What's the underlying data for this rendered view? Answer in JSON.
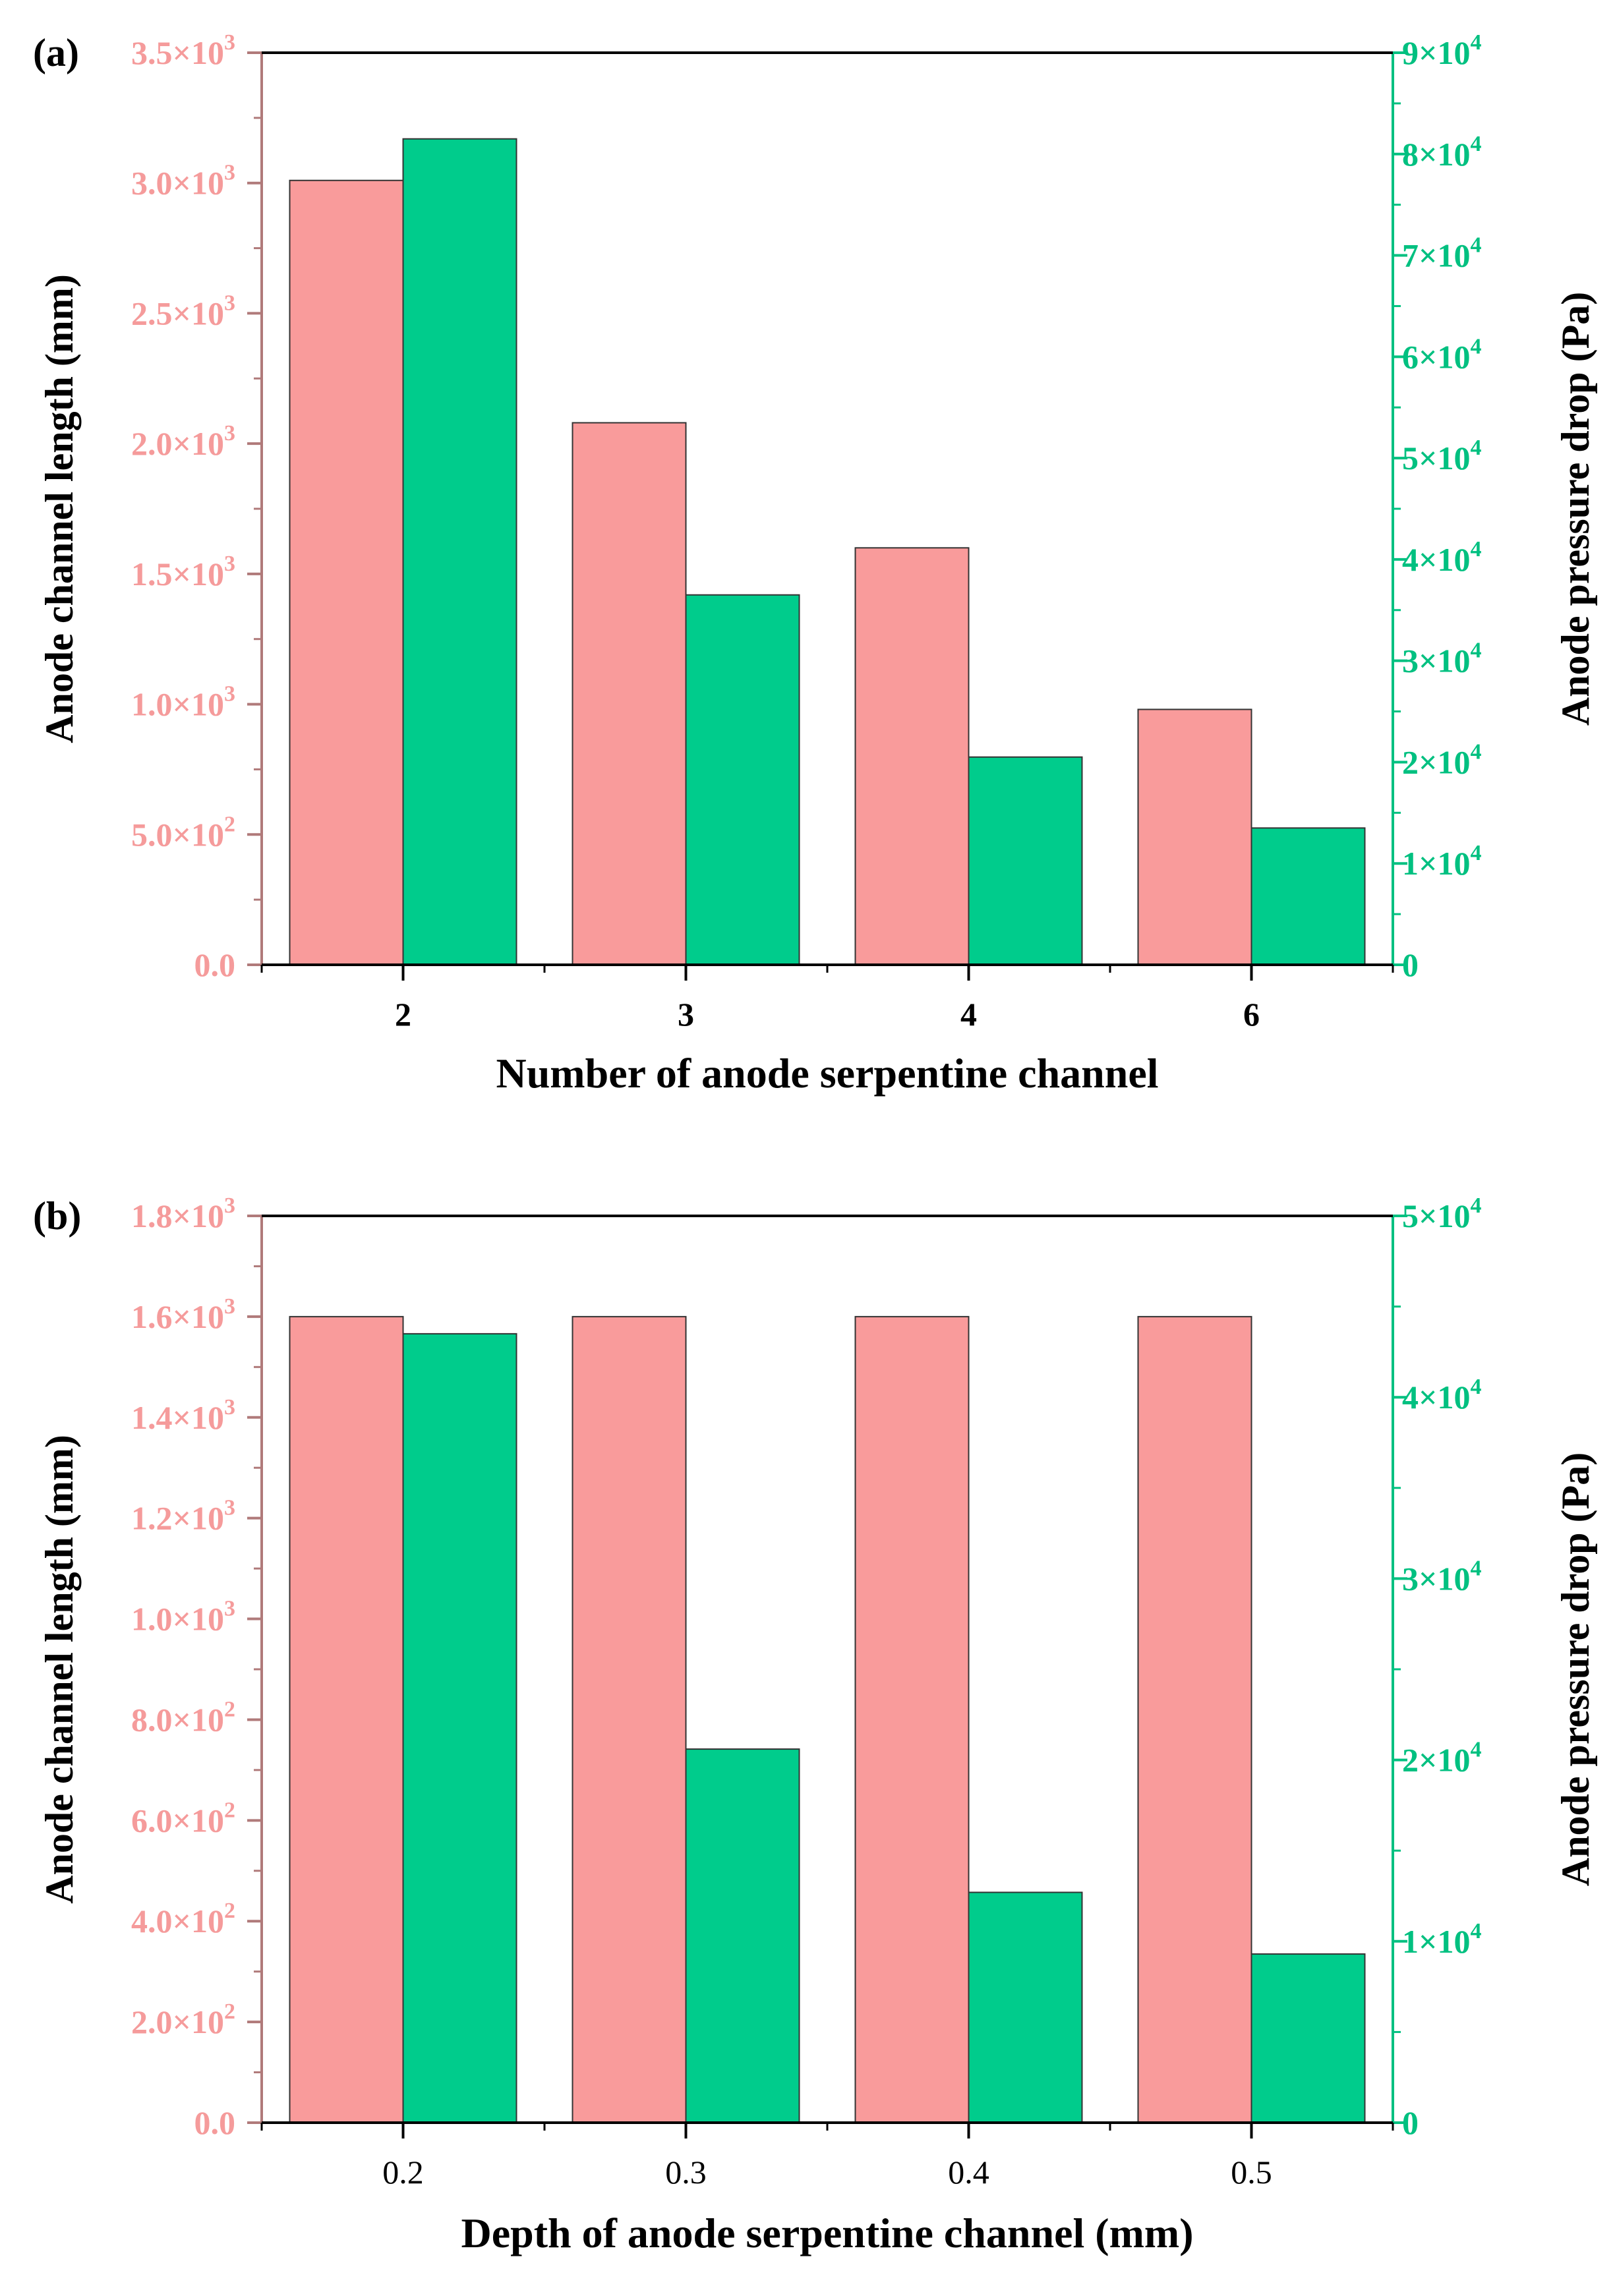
{
  "colors": {
    "length_bar": "#F99B9B",
    "pressure_bar": "#00CC8C",
    "left_axis": "#F59B9B",
    "left_axis_line": "#B07A7A",
    "right_axis": "#00C080",
    "bar_outline": "#333333"
  },
  "chart_data": [
    {
      "type": "bar",
      "panel_label": "(a)",
      "xlabel": "Number of anode serpentine channel",
      "ylabel": "Anode channel length (mm)",
      "y2label": "Anode pressure drop (Pa)",
      "categories": [
        "2",
        "3",
        "4",
        "6"
      ],
      "category_bold": true,
      "ylim": [
        0,
        3500
      ],
      "y2lim": [
        0,
        90000
      ],
      "yticks": [
        {
          "value": 0,
          "label": "0.0"
        },
        {
          "value": 500,
          "label": "5.0×10",
          "exp": "2"
        },
        {
          "value": 1000,
          "label": "1.0×10",
          "exp": "3"
        },
        {
          "value": 1500,
          "label": "1.5×10",
          "exp": "3"
        },
        {
          "value": 2000,
          "label": "2.0×10",
          "exp": "3"
        },
        {
          "value": 2500,
          "label": "2.5×10",
          "exp": "3"
        },
        {
          "value": 3000,
          "label": "3.0×10",
          "exp": "3"
        },
        {
          "value": 3500,
          "label": "3.5×10",
          "exp": "3"
        }
      ],
      "y2ticks": [
        {
          "value": 0,
          "label": "0"
        },
        {
          "value": 10000,
          "label": "1×10",
          "exp": "4"
        },
        {
          "value": 20000,
          "label": "2×10",
          "exp": "4"
        },
        {
          "value": 30000,
          "label": "3×10",
          "exp": "4"
        },
        {
          "value": 40000,
          "label": "4×10",
          "exp": "4"
        },
        {
          "value": 50000,
          "label": "5×10",
          "exp": "4"
        },
        {
          "value": 60000,
          "label": "6×10",
          "exp": "4"
        },
        {
          "value": 70000,
          "label": "7×10",
          "exp": "4"
        },
        {
          "value": 80000,
          "label": "8×10",
          "exp": "4"
        },
        {
          "value": 90000,
          "label": "9×10",
          "exp": "4"
        }
      ],
      "series": [
        {
          "name": "Anode channel length",
          "axis": "left",
          "values": [
            3010,
            2080,
            1600,
            980
          ]
        },
        {
          "name": "Anode pressure drop",
          "axis": "right",
          "values": [
            81500,
            36500,
            20500,
            13500
          ]
        }
      ]
    },
    {
      "type": "bar",
      "panel_label": "(b)",
      "xlabel": "Depth of anode serpentine channel (mm)",
      "ylabel": "Anode channel length (mm)",
      "y2label": "Anode pressure drop (Pa)",
      "categories": [
        "0.2",
        "0.3",
        "0.4",
        "0.5"
      ],
      "category_bold": false,
      "ylim": [
        0,
        1800
      ],
      "y2lim": [
        0,
        50000
      ],
      "yticks": [
        {
          "value": 0,
          "label": "0.0"
        },
        {
          "value": 200,
          "label": "2.0×10",
          "exp": "2"
        },
        {
          "value": 400,
          "label": "4.0×10",
          "exp": "2"
        },
        {
          "value": 600,
          "label": "6.0×10",
          "exp": "2"
        },
        {
          "value": 800,
          "label": "8.0×10",
          "exp": "2"
        },
        {
          "value": 1000,
          "label": "1.0×10",
          "exp": "3"
        },
        {
          "value": 1200,
          "label": "1.2×10",
          "exp": "3"
        },
        {
          "value": 1400,
          "label": "1.4×10",
          "exp": "3"
        },
        {
          "value": 1600,
          "label": "1.6×10",
          "exp": "3"
        },
        {
          "value": 1800,
          "label": "1.8×10",
          "exp": "3"
        }
      ],
      "y2ticks": [
        {
          "value": 0,
          "label": "0"
        },
        {
          "value": 10000,
          "label": "1×10",
          "exp": "4"
        },
        {
          "value": 20000,
          "label": "2×10",
          "exp": "4"
        },
        {
          "value": 30000,
          "label": "3×10",
          "exp": "4"
        },
        {
          "value": 40000,
          "label": "4×10",
          "exp": "4"
        },
        {
          "value": 50000,
          "label": "5×10",
          "exp": "4"
        }
      ],
      "series": [
        {
          "name": "Anode channel length",
          "axis": "left",
          "values": [
            1600,
            1600,
            1600,
            1600
          ]
        },
        {
          "name": "Anode pressure drop",
          "axis": "right",
          "values": [
            43500,
            20600,
            12700,
            9300
          ]
        }
      ]
    }
  ]
}
